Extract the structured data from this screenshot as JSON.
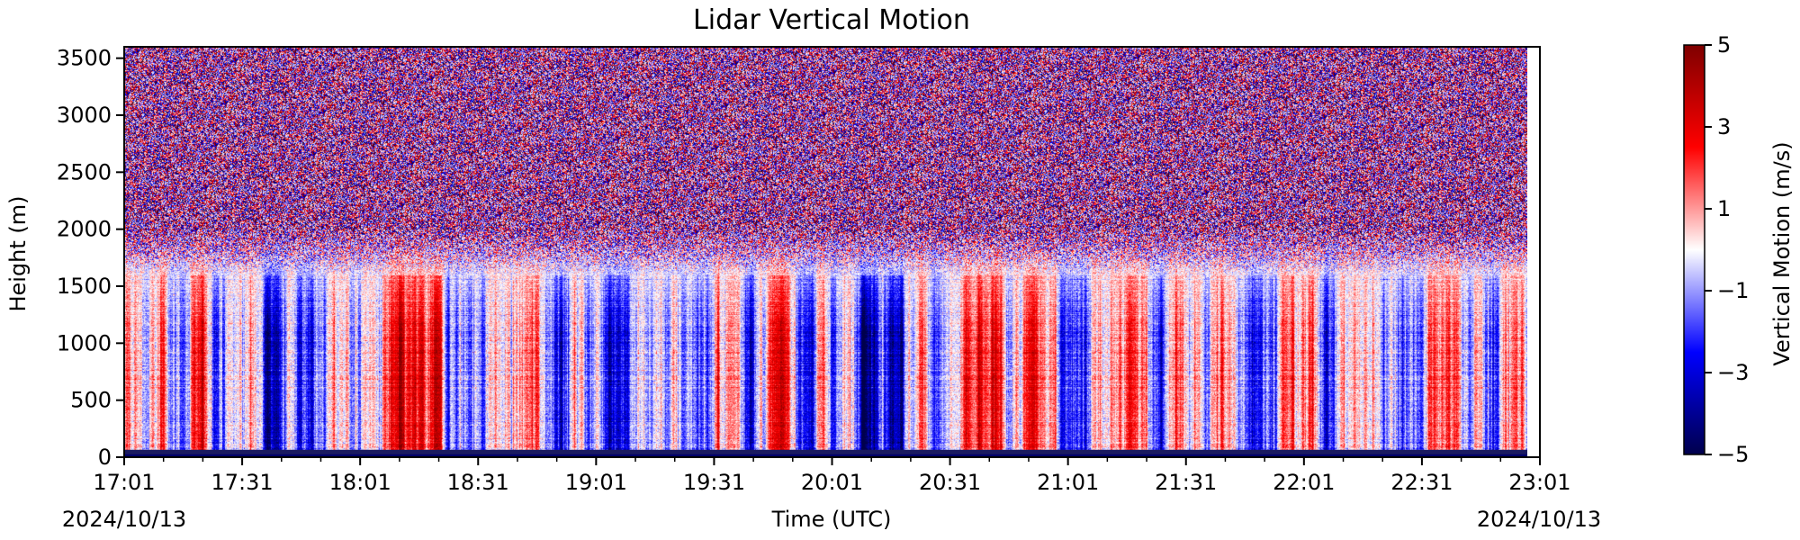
{
  "chart_data": {
    "type": "heatmap",
    "title": "Lidar Vertical Motion",
    "xlabel": "Time (UTC)",
    "ylabel": "Height (m)",
    "date_start_label": "2024/10/13",
    "date_end_label": "2024/10/13",
    "x_ticks": [
      "17:01",
      "17:31",
      "18:01",
      "18:31",
      "19:01",
      "19:31",
      "20:01",
      "20:31",
      "21:01",
      "21:31",
      "22:01",
      "22:31",
      "23:01"
    ],
    "x_range": [
      "17:01",
      "23:01"
    ],
    "x_minor_tick_minutes": 10,
    "y_ticks": [
      0,
      500,
      1000,
      1500,
      2000,
      2500,
      3000,
      3500
    ],
    "y_range": [
      0,
      3600
    ],
    "colorbar": {
      "label": "Vertical Motion (m/s)",
      "ticks": [
        5,
        3,
        1,
        -1,
        -3,
        -5
      ],
      "tick_labels": [
        "5",
        "3",
        "1",
        "−1",
        "−3",
        "−5"
      ],
      "range": [
        -5,
        5
      ],
      "colormap": "seismic",
      "colors": [
        "#00004c",
        "#0000ff",
        "#ffffff",
        "#ff0000",
        "#7f0000"
      ]
    },
    "data_notes_series": [
      {
        "height_range_m": [
          0,
          1600
        ],
        "description": "alternating updrafts (red) and downdrafts (blue) of roughly ±3 m/s"
      },
      {
        "height_range_m": [
          1600,
          2000
        ],
        "description": "weak motion near 0 m/s"
      },
      {
        "height_range_m": [
          2000,
          3600
        ],
        "description": "noisy signal spanning ±5 m/s"
      }
    ],
    "surface_band_color": "#1a1a60",
    "grid": false
  }
}
